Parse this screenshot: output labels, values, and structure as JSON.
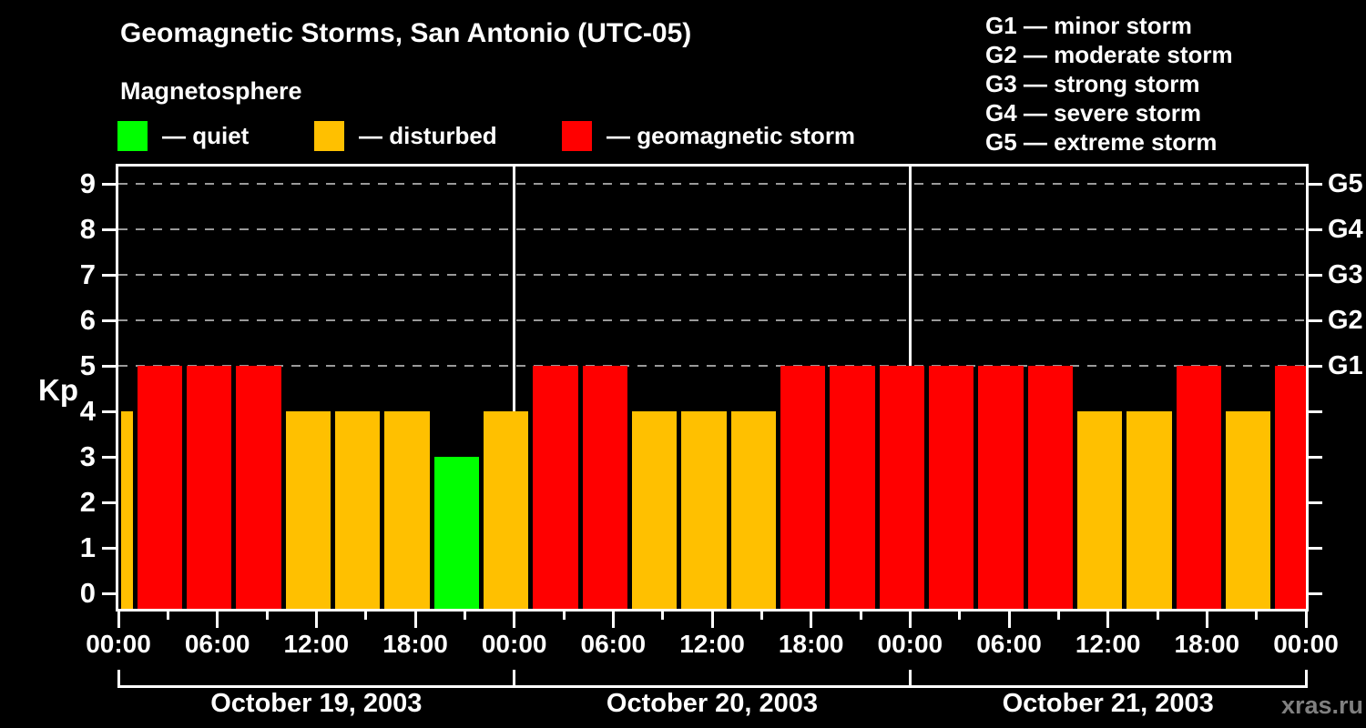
{
  "header": {
    "title": "Geomagnetic Storms, San Antonio (UTC-05)",
    "subtitle": "Magnetosphere",
    "condition_legend": [
      {
        "label": "— quiet",
        "color": "#00ff00",
        "state": "quiet"
      },
      {
        "label": "— disturbed",
        "color": "#ffc000",
        "state": "disturbed"
      },
      {
        "label": "— geomagnetic storm",
        "color": "#ff0000",
        "state": "storm"
      }
    ],
    "storm_scale_legend": [
      "G1 — minor storm",
      "G2 — moderate storm",
      "G3 — strong storm",
      "G4 — severe storm",
      "G5 — extreme storm"
    ]
  },
  "watermark": "xras.ru",
  "chart_data": {
    "type": "bar",
    "title": "Geomagnetic Storms, San Antonio (UTC-05)",
    "ylabel": "Kp",
    "ylim": [
      0,
      9
    ],
    "y_ticks": [
      0,
      1,
      2,
      3,
      4,
      5,
      6,
      7,
      8,
      9
    ],
    "grid_levels_kp": [
      5,
      6,
      7,
      8,
      9
    ],
    "grid": "dashed",
    "right_axis": [
      {
        "kp": 5,
        "label": "G1"
      },
      {
        "kp": 6,
        "label": "G2"
      },
      {
        "kp": 7,
        "label": "G3"
      },
      {
        "kp": 8,
        "label": "G4"
      },
      {
        "kp": 9,
        "label": "G5"
      }
    ],
    "hours_total": 72,
    "minor_tick_step_hours": 3,
    "major_tick_step_hours": 6,
    "x_ticks": [
      {
        "hour": 0,
        "label": "00:00"
      },
      {
        "hour": 6,
        "label": "06:00"
      },
      {
        "hour": 12,
        "label": "12:00"
      },
      {
        "hour": 18,
        "label": "18:00"
      },
      {
        "hour": 24,
        "label": "00:00"
      },
      {
        "hour": 30,
        "label": "06:00"
      },
      {
        "hour": 36,
        "label": "12:00"
      },
      {
        "hour": 42,
        "label": "18:00"
      },
      {
        "hour": 48,
        "label": "00:00"
      },
      {
        "hour": 54,
        "label": "06:00"
      },
      {
        "hour": 60,
        "label": "12:00"
      },
      {
        "hour": 66,
        "label": "18:00"
      },
      {
        "hour": 72,
        "label": "00:00"
      }
    ],
    "day_boundaries_hours": [
      24,
      48
    ],
    "days": [
      {
        "start_hour": 0,
        "end_hour": 24,
        "label": "October 19, 2003"
      },
      {
        "start_hour": 24,
        "end_hour": 48,
        "label": "October 20, 2003"
      },
      {
        "start_hour": 48,
        "end_hour": 72,
        "label": "October 21, 2003"
      }
    ],
    "colors": {
      "quiet": "#00ff00",
      "disturbed": "#ffc000",
      "storm": "#ff0000"
    },
    "bars": [
      {
        "start_hour": 0,
        "end_hour": 1,
        "kp": 4,
        "state": "disturbed"
      },
      {
        "start_hour": 1,
        "end_hour": 4,
        "kp": 5,
        "state": "storm"
      },
      {
        "start_hour": 4,
        "end_hour": 7,
        "kp": 5,
        "state": "storm"
      },
      {
        "start_hour": 7,
        "end_hour": 10,
        "kp": 5,
        "state": "storm"
      },
      {
        "start_hour": 10,
        "end_hour": 13,
        "kp": 4,
        "state": "disturbed"
      },
      {
        "start_hour": 13,
        "end_hour": 16,
        "kp": 4,
        "state": "disturbed"
      },
      {
        "start_hour": 16,
        "end_hour": 19,
        "kp": 4,
        "state": "disturbed"
      },
      {
        "start_hour": 19,
        "end_hour": 22,
        "kp": 3,
        "state": "quiet"
      },
      {
        "start_hour": 22,
        "end_hour": 25,
        "kp": 4,
        "state": "disturbed"
      },
      {
        "start_hour": 25,
        "end_hour": 28,
        "kp": 5,
        "state": "storm"
      },
      {
        "start_hour": 28,
        "end_hour": 31,
        "kp": 5,
        "state": "storm"
      },
      {
        "start_hour": 31,
        "end_hour": 34,
        "kp": 4,
        "state": "disturbed"
      },
      {
        "start_hour": 34,
        "end_hour": 37,
        "kp": 4,
        "state": "disturbed"
      },
      {
        "start_hour": 37,
        "end_hour": 40,
        "kp": 4,
        "state": "disturbed"
      },
      {
        "start_hour": 40,
        "end_hour": 43,
        "kp": 5,
        "state": "storm"
      },
      {
        "start_hour": 43,
        "end_hour": 46,
        "kp": 5,
        "state": "storm"
      },
      {
        "start_hour": 46,
        "end_hour": 49,
        "kp": 5,
        "state": "storm"
      },
      {
        "start_hour": 49,
        "end_hour": 52,
        "kp": 5,
        "state": "storm"
      },
      {
        "start_hour": 52,
        "end_hour": 55,
        "kp": 5,
        "state": "storm"
      },
      {
        "start_hour": 55,
        "end_hour": 58,
        "kp": 5,
        "state": "storm"
      },
      {
        "start_hour": 58,
        "end_hour": 61,
        "kp": 4,
        "state": "disturbed"
      },
      {
        "start_hour": 61,
        "end_hour": 64,
        "kp": 4,
        "state": "disturbed"
      },
      {
        "start_hour": 64,
        "end_hour": 67,
        "kp": 5,
        "state": "storm"
      },
      {
        "start_hour": 67,
        "end_hour": 70,
        "kp": 4,
        "state": "disturbed"
      },
      {
        "start_hour": 70,
        "end_hour": 72,
        "kp": 5,
        "state": "storm"
      }
    ]
  }
}
